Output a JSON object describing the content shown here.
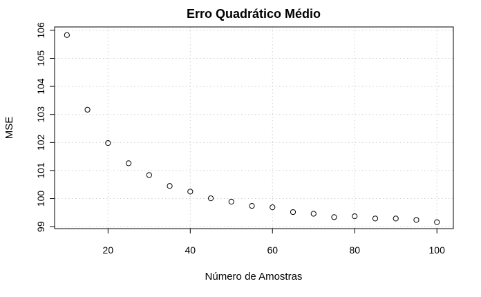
{
  "chart_data": {
    "type": "scatter",
    "title": "Erro Quadrático Médio",
    "xlabel": "Número de Amostras",
    "ylabel": "MSE",
    "xlim": [
      7,
      104
    ],
    "ylim": [
      98.93,
      106.12
    ],
    "xticks": [
      20,
      40,
      60,
      80,
      100
    ],
    "yticks": [
      99,
      100,
      101,
      102,
      103,
      104,
      105,
      106
    ],
    "grid": true,
    "legend": "none",
    "series": [
      {
        "x": [
          10,
          15,
          20,
          25,
          30,
          35,
          40,
          45,
          50,
          55,
          60,
          65,
          70,
          75,
          80,
          85,
          90,
          95,
          100
        ],
        "y": [
          105.83,
          103.17,
          101.98,
          101.26,
          100.84,
          100.45,
          100.25,
          100.01,
          99.89,
          99.74,
          99.69,
          99.52,
          99.46,
          99.34,
          99.37,
          99.29,
          99.29,
          99.24,
          99.16
        ]
      }
    ]
  }
}
